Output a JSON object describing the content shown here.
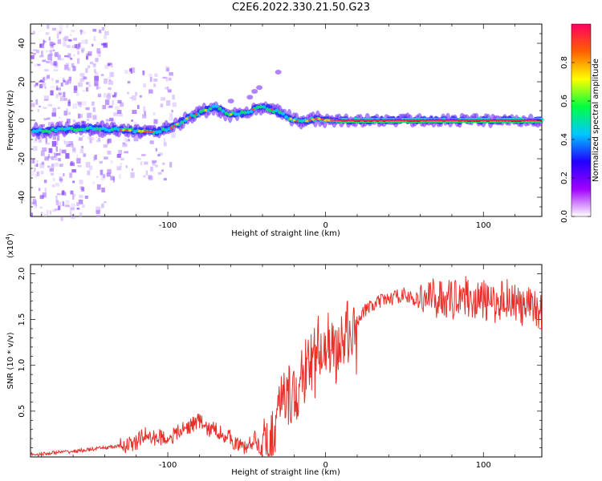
{
  "title": "C2E6.2022.330.21.50.G23",
  "spectrogram": {
    "type": "heatmap",
    "xlabel": "Height of straight line (km)",
    "ylabel": "Frequency (Hz)",
    "xlim": [
      -187,
      137
    ],
    "ylim": [
      -50,
      50
    ],
    "x_ticks": [
      -100,
      0,
      100
    ],
    "y_ticks": [
      -40,
      -20,
      0,
      20,
      40
    ],
    "colorbar": {
      "label": "Normalized spectral amplitude",
      "range": [
        0,
        1
      ],
      "ticks": [
        "0.0",
        "0.2",
        "0.4",
        "0.6",
        "0.8"
      ],
      "colors": [
        "#ffffff",
        "#a000ff",
        "#2000ff",
        "#00c8ff",
        "#00ff40",
        "#ffff00",
        "#ff6000",
        "#ff0060"
      ]
    },
    "ridge": {
      "x": [
        -185,
        -170,
        -150,
        -130,
        -110,
        -100,
        -90,
        -80,
        -70,
        -60,
        -50,
        -45,
        -40,
        -35,
        -30,
        -25,
        -20,
        -15,
        -10,
        -5,
        0,
        10,
        137
      ],
      "y": [
        -6,
        -5,
        -4,
        -5,
        -6,
        -5,
        0,
        4,
        7,
        3,
        4,
        6,
        7,
        6,
        4,
        2,
        0,
        -1,
        0,
        1,
        0,
        0,
        0
      ]
    }
  },
  "chart_data": {
    "type": "line",
    "xlabel": "Height of straight line (km)",
    "ylabel": "SNR (10 * v/v)",
    "y_multiplier": "(x10",
    "y_multiplier_exp": "4",
    "y_multiplier_close": ")",
    "xlim": [
      -187,
      137
    ],
    "ylim": [
      0,
      2.1
    ],
    "x_ticks": [
      -100,
      0,
      100
    ],
    "y_ticks": [
      "0.5",
      "1.0",
      "1.5",
      "2.0"
    ],
    "series": [
      {
        "color": "#e8302a",
        "x": [
          -187,
          -180,
          -170,
          -160,
          -150,
          -140,
          -130,
          -120,
          -115,
          -110,
          -105,
          -100,
          -95,
          -90,
          -85,
          -80,
          -75,
          -70,
          -65,
          -60,
          -55,
          -50,
          -45,
          -40,
          -35,
          -30,
          -25,
          -20,
          -15,
          -10,
          -5,
          0,
          5,
          10,
          15,
          20,
          25,
          30,
          35,
          40,
          45,
          50,
          55,
          60,
          65,
          70,
          75,
          80,
          85,
          90,
          95,
          100,
          105,
          110,
          115,
          120,
          125,
          130,
          137
        ],
        "y": [
          0.03,
          0.03,
          0.05,
          0.06,
          0.08,
          0.1,
          0.12,
          0.15,
          0.25,
          0.2,
          0.22,
          0.2,
          0.25,
          0.3,
          0.35,
          0.4,
          0.3,
          0.3,
          0.25,
          0.2,
          0.12,
          0.1,
          0.2,
          0.08,
          0.15,
          0.5,
          0.7,
          0.6,
          0.9,
          1.0,
          1.2,
          1.3,
          1.1,
          1.25,
          1.4,
          1.5,
          1.6,
          1.65,
          1.7,
          1.72,
          1.75,
          1.78,
          1.72,
          1.7,
          1.75,
          1.72,
          1.75,
          1.7,
          1.8,
          1.75,
          1.7,
          1.72,
          1.65,
          1.7,
          1.75,
          1.7,
          1.6,
          1.65,
          1.6
        ]
      }
    ]
  }
}
